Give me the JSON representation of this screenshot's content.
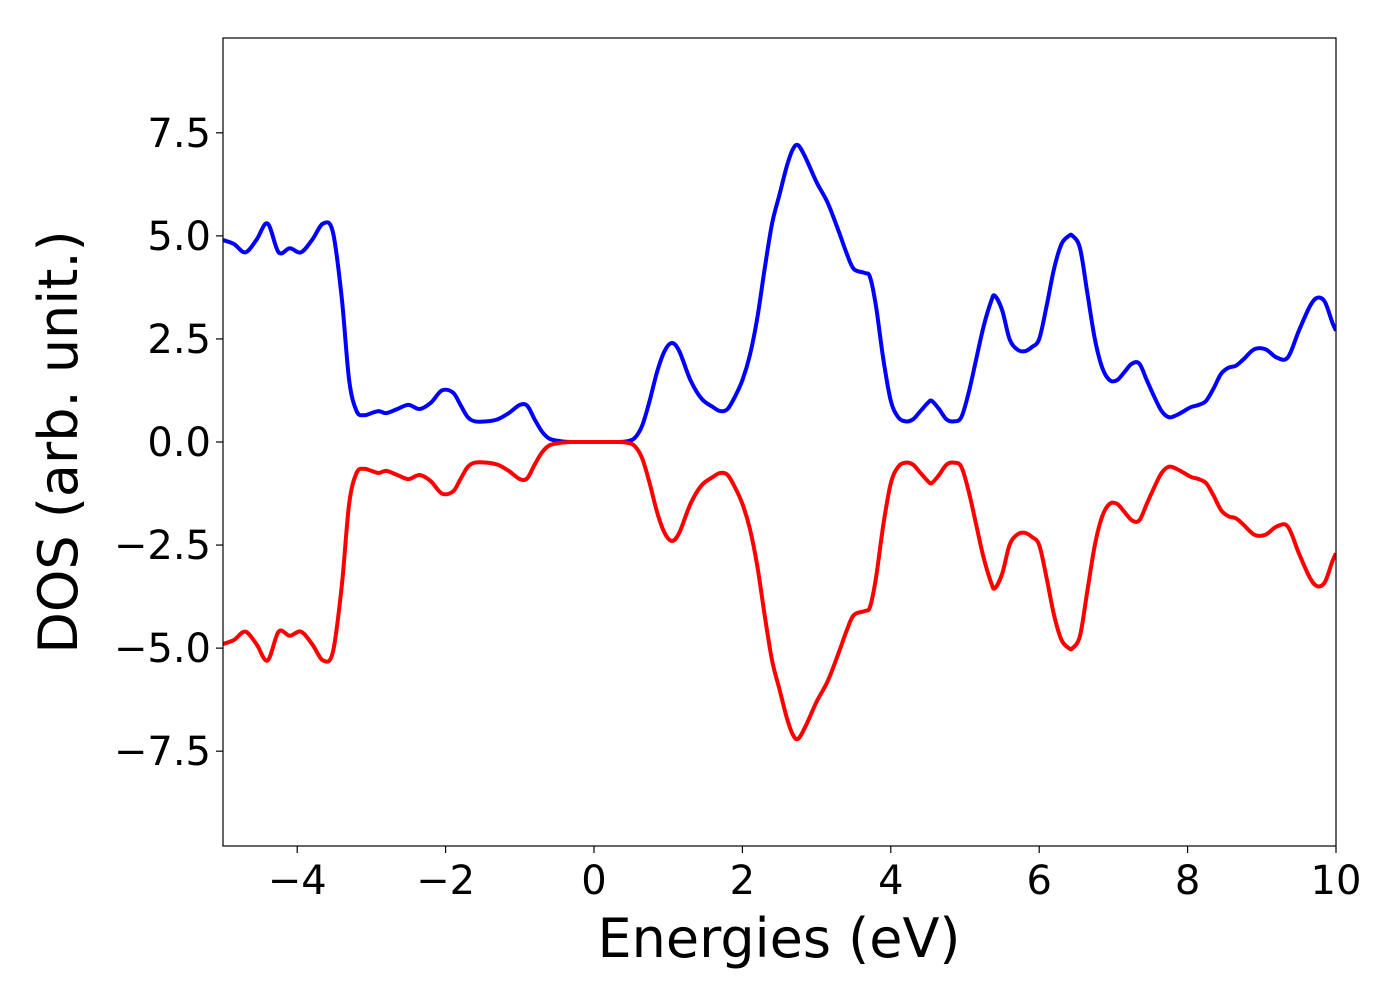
{
  "chart_data": {
    "type": "line",
    "xlabel": "Energies (eV)",
    "ylabel": "DOS (arb. unit.)",
    "xlim": [
      -5,
      10
    ],
    "ylim": [
      -9.8,
      9.8
    ],
    "xticks": [
      -4,
      -2,
      0,
      2,
      4,
      6,
      8,
      10
    ],
    "xtick_labels": [
      "−4",
      "−2",
      "0",
      "2",
      "4",
      "6",
      "8",
      "10"
    ],
    "yticks": [
      -7.5,
      -5.0,
      -2.5,
      0.0,
      2.5,
      5.0,
      7.5
    ],
    "ytick_labels": [
      "−7.5",
      "−5.0",
      "−2.5",
      "0.0",
      "2.5",
      "5.0",
      "7.5"
    ],
    "grid": false,
    "legend": "none",
    "series": [
      {
        "color": "#0000ff",
        "x": [
          -5.0,
          -4.85,
          -4.7,
          -4.55,
          -4.4,
          -4.25,
          -4.1,
          -3.95,
          -3.8,
          -3.65,
          -3.52,
          -3.4,
          -3.3,
          -3.2,
          -3.1,
          -3.0,
          -2.9,
          -2.8,
          -2.65,
          -2.5,
          -2.35,
          -2.2,
          -2.05,
          -1.9,
          -1.8,
          -1.7,
          -1.6,
          -1.45,
          -1.3,
          -1.15,
          -1.0,
          -0.9,
          -0.8,
          -0.7,
          -0.6,
          -0.45,
          -0.3,
          -0.1,
          0.1,
          0.3,
          0.45,
          0.55,
          0.65,
          0.75,
          0.85,
          0.95,
          1.05,
          1.15,
          1.3,
          1.45,
          1.6,
          1.7,
          1.8,
          1.9,
          2.0,
          2.1,
          2.2,
          2.3,
          2.4,
          2.5,
          2.6,
          2.68,
          2.75,
          2.85,
          3.0,
          3.15,
          3.3,
          3.4,
          3.5,
          3.65,
          3.72,
          3.8,
          3.9,
          4.0,
          4.1,
          4.2,
          4.3,
          4.4,
          4.5,
          4.55,
          4.65,
          4.75,
          4.85,
          4.95,
          5.05,
          5.15,
          5.25,
          5.35,
          5.4,
          5.5,
          5.6,
          5.7,
          5.8,
          5.9,
          6.0,
          6.1,
          6.2,
          6.3,
          6.4,
          6.45,
          6.55,
          6.65,
          6.75,
          6.85,
          6.95,
          7.05,
          7.15,
          7.25,
          7.35,
          7.45,
          7.55,
          7.65,
          7.75,
          7.85,
          7.95,
          8.05,
          8.15,
          8.25,
          8.35,
          8.45,
          8.55,
          8.65,
          8.75,
          8.9,
          9.05,
          9.2,
          9.35,
          9.5,
          9.65,
          9.75,
          9.85,
          9.95,
          10.0
        ],
        "y": [
          4.9,
          4.8,
          4.6,
          4.9,
          5.3,
          4.6,
          4.7,
          4.6,
          4.9,
          5.3,
          5.1,
          3.5,
          1.5,
          0.75,
          0.65,
          0.7,
          0.75,
          0.7,
          0.8,
          0.9,
          0.8,
          0.95,
          1.25,
          1.2,
          0.9,
          0.6,
          0.5,
          0.5,
          0.55,
          0.7,
          0.9,
          0.88,
          0.55,
          0.25,
          0.08,
          0.02,
          0.0,
          0.0,
          0.0,
          0.0,
          0.02,
          0.1,
          0.4,
          1.0,
          1.7,
          2.2,
          2.4,
          2.2,
          1.5,
          1.05,
          0.85,
          0.75,
          0.8,
          1.1,
          1.5,
          2.1,
          3.0,
          4.2,
          5.3,
          6.0,
          6.7,
          7.1,
          7.2,
          6.9,
          6.3,
          5.8,
          5.1,
          4.6,
          4.2,
          4.1,
          4.0,
          3.3,
          2.0,
          1.0,
          0.6,
          0.5,
          0.55,
          0.75,
          0.95,
          1.0,
          0.8,
          0.55,
          0.5,
          0.6,
          1.2,
          2.0,
          2.8,
          3.4,
          3.55,
          3.2,
          2.5,
          2.25,
          2.2,
          2.3,
          2.5,
          3.3,
          4.2,
          4.8,
          5.0,
          5.0,
          4.7,
          3.6,
          2.5,
          1.8,
          1.5,
          1.5,
          1.7,
          1.9,
          1.9,
          1.5,
          1.1,
          0.75,
          0.6,
          0.65,
          0.75,
          0.85,
          0.9,
          1.0,
          1.3,
          1.65,
          1.8,
          1.85,
          2.0,
          2.25,
          2.25,
          2.05,
          2.05,
          2.7,
          3.3,
          3.5,
          3.4,
          2.9,
          2.7
        ]
      },
      {
        "color": "#ff0000",
        "x": [
          -5.0,
          -4.85,
          -4.7,
          -4.55,
          -4.4,
          -4.25,
          -4.1,
          -3.95,
          -3.8,
          -3.65,
          -3.52,
          -3.4,
          -3.3,
          -3.2,
          -3.1,
          -3.0,
          -2.9,
          -2.8,
          -2.65,
          -2.5,
          -2.35,
          -2.2,
          -2.05,
          -1.9,
          -1.8,
          -1.7,
          -1.6,
          -1.45,
          -1.3,
          -1.15,
          -1.0,
          -0.9,
          -0.8,
          -0.7,
          -0.6,
          -0.45,
          -0.3,
          -0.1,
          0.1,
          0.3,
          0.45,
          0.55,
          0.65,
          0.75,
          0.85,
          0.95,
          1.05,
          1.15,
          1.3,
          1.45,
          1.6,
          1.7,
          1.8,
          1.9,
          2.0,
          2.1,
          2.2,
          2.3,
          2.4,
          2.5,
          2.6,
          2.68,
          2.75,
          2.85,
          3.0,
          3.15,
          3.3,
          3.4,
          3.5,
          3.65,
          3.72,
          3.8,
          3.9,
          4.0,
          4.1,
          4.2,
          4.3,
          4.4,
          4.5,
          4.55,
          4.65,
          4.75,
          4.85,
          4.95,
          5.05,
          5.15,
          5.25,
          5.35,
          5.4,
          5.5,
          5.6,
          5.7,
          5.8,
          5.9,
          6.0,
          6.1,
          6.2,
          6.3,
          6.4,
          6.45,
          6.55,
          6.65,
          6.75,
          6.85,
          6.95,
          7.05,
          7.15,
          7.25,
          7.35,
          7.45,
          7.55,
          7.65,
          7.75,
          7.85,
          7.95,
          8.05,
          8.15,
          8.25,
          8.35,
          8.45,
          8.55,
          8.65,
          8.75,
          8.9,
          9.05,
          9.2,
          9.35,
          9.5,
          9.65,
          9.75,
          9.85,
          9.95,
          10.0
        ],
        "y": [
          -4.9,
          -4.8,
          -4.6,
          -4.9,
          -5.3,
          -4.6,
          -4.7,
          -4.6,
          -4.9,
          -5.3,
          -5.1,
          -3.5,
          -1.5,
          -0.75,
          -0.65,
          -0.7,
          -0.75,
          -0.7,
          -0.8,
          -0.9,
          -0.8,
          -0.95,
          -1.25,
          -1.2,
          -0.9,
          -0.6,
          -0.5,
          -0.5,
          -0.55,
          -0.7,
          -0.9,
          -0.88,
          -0.55,
          -0.25,
          -0.08,
          -0.02,
          0.0,
          0.0,
          0.0,
          0.0,
          -0.02,
          -0.1,
          -0.4,
          -1.0,
          -1.7,
          -2.2,
          -2.4,
          -2.2,
          -1.5,
          -1.05,
          -0.85,
          -0.75,
          -0.8,
          -1.1,
          -1.5,
          -2.1,
          -3.0,
          -4.2,
          -5.3,
          -6.0,
          -6.7,
          -7.1,
          -7.2,
          -6.9,
          -6.3,
          -5.8,
          -5.1,
          -4.6,
          -4.2,
          -4.1,
          -4.0,
          -3.3,
          -2.0,
          -1.0,
          -0.6,
          -0.5,
          -0.55,
          -0.75,
          -0.95,
          -1.0,
          -0.8,
          -0.55,
          -0.5,
          -0.6,
          -1.2,
          -2.0,
          -2.8,
          -3.4,
          -3.55,
          -3.2,
          -2.5,
          -2.25,
          -2.2,
          -2.3,
          -2.5,
          -3.3,
          -4.2,
          -4.8,
          -5.0,
          -5.0,
          -4.7,
          -3.6,
          -2.5,
          -1.8,
          -1.5,
          -1.5,
          -1.7,
          -1.9,
          -1.9,
          -1.5,
          -1.1,
          -0.75,
          -0.6,
          -0.65,
          -0.75,
          -0.85,
          -0.9,
          -1.0,
          -1.3,
          -1.65,
          -1.8,
          -1.85,
          -2.0,
          -2.25,
          -2.25,
          -2.05,
          -2.05,
          -2.7,
          -3.3,
          -3.5,
          -3.4,
          -2.9,
          -2.7
        ]
      }
    ]
  }
}
